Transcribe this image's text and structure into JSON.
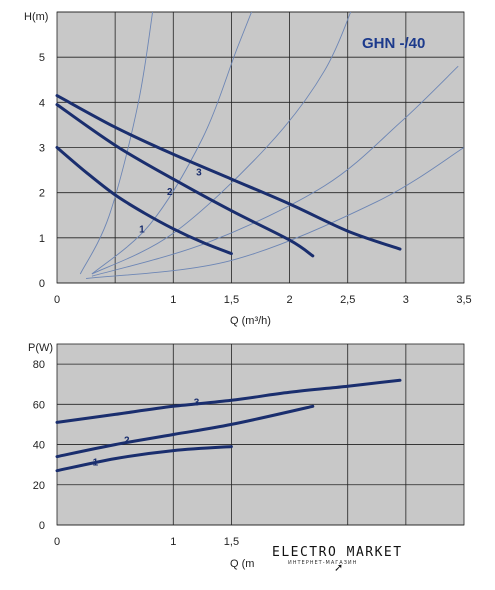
{
  "chart_data": [
    {
      "type": "line",
      "title": "GHN -/40",
      "ylabel": "H(m)",
      "xlabel": "Q (m³/h)",
      "xlim": [
        0,
        3.5
      ],
      "ylim": [
        0,
        6
      ],
      "x_ticks": [
        "0",
        "1",
        "1,5",
        "2",
        "2,5",
        "3",
        "3,5"
      ],
      "y_ticks": [
        "0",
        "1",
        "2",
        "3",
        "4",
        "5"
      ],
      "grid": true,
      "series": [
        {
          "name": "1",
          "x": [
            0,
            0.25,
            0.5,
            0.75,
            1.0,
            1.25,
            1.5
          ],
          "y": [
            3.0,
            2.45,
            1.95,
            1.55,
            1.2,
            0.9,
            0.65
          ]
        },
        {
          "name": "2",
          "x": [
            0,
            0.5,
            1.0,
            1.5,
            2.0,
            2.2
          ],
          "y": [
            3.95,
            3.05,
            2.3,
            1.6,
            0.95,
            0.6
          ]
        },
        {
          "name": "3",
          "x": [
            0,
            0.5,
            1.0,
            1.5,
            2.0,
            2.5,
            2.95
          ],
          "y": [
            4.15,
            3.45,
            2.85,
            2.3,
            1.75,
            1.15,
            0.75
          ]
        }
      ],
      "system_curves": [
        {
          "x": [
            0.2,
            0.45,
            0.7,
            0.85,
            0.97
          ],
          "y": [
            0.2,
            1.5,
            4.0,
            6.5,
            8.5
          ]
        },
        {
          "x": [
            0.3,
            0.8,
            1.25,
            1.55,
            1.75
          ],
          "y": [
            0.2,
            1.3,
            3.2,
            5.2,
            6.5
          ]
        },
        {
          "x": [
            0.3,
            1.0,
            1.8,
            2.3,
            2.6
          ],
          "y": [
            0.2,
            1.1,
            3.0,
            4.7,
            6.5
          ]
        },
        {
          "x": [
            0.3,
            1.3,
            2.3,
            2.95,
            3.45
          ],
          "y": [
            0.15,
            0.9,
            2.15,
            3.55,
            4.8
          ]
        },
        {
          "x": [
            0.25,
            1.5,
            2.75,
            3.5
          ],
          "y": [
            0.1,
            0.5,
            1.8,
            3.0
          ]
        }
      ]
    },
    {
      "type": "line",
      "ylabel": "P(W)",
      "xlabel": "Q (m",
      "xlim": [
        0,
        3.5
      ],
      "ylim": [
        0,
        90
      ],
      "x_ticks": [
        "0",
        "1",
        "1,5"
      ],
      "y_ticks": [
        "0",
        "20",
        "40",
        "60",
        "80"
      ],
      "grid": true,
      "series": [
        {
          "name": "1",
          "x": [
            0,
            0.5,
            1.0,
            1.5
          ],
          "y": [
            27,
            33,
            37,
            39
          ]
        },
        {
          "name": "2",
          "x": [
            0,
            0.5,
            1.0,
            1.5,
            2.2
          ],
          "y": [
            34,
            40,
            45,
            50,
            59
          ]
        },
        {
          "name": "3",
          "x": [
            0,
            0.5,
            1.0,
            1.5,
            2.0,
            2.5,
            2.95
          ],
          "y": [
            51,
            55,
            59,
            62,
            66,
            69,
            72
          ]
        }
      ]
    }
  ],
  "watermark": {
    "brand": "ELECTRO MARKET",
    "tagline": "ИНТЕРНЕТ-МАГАЗИН"
  }
}
